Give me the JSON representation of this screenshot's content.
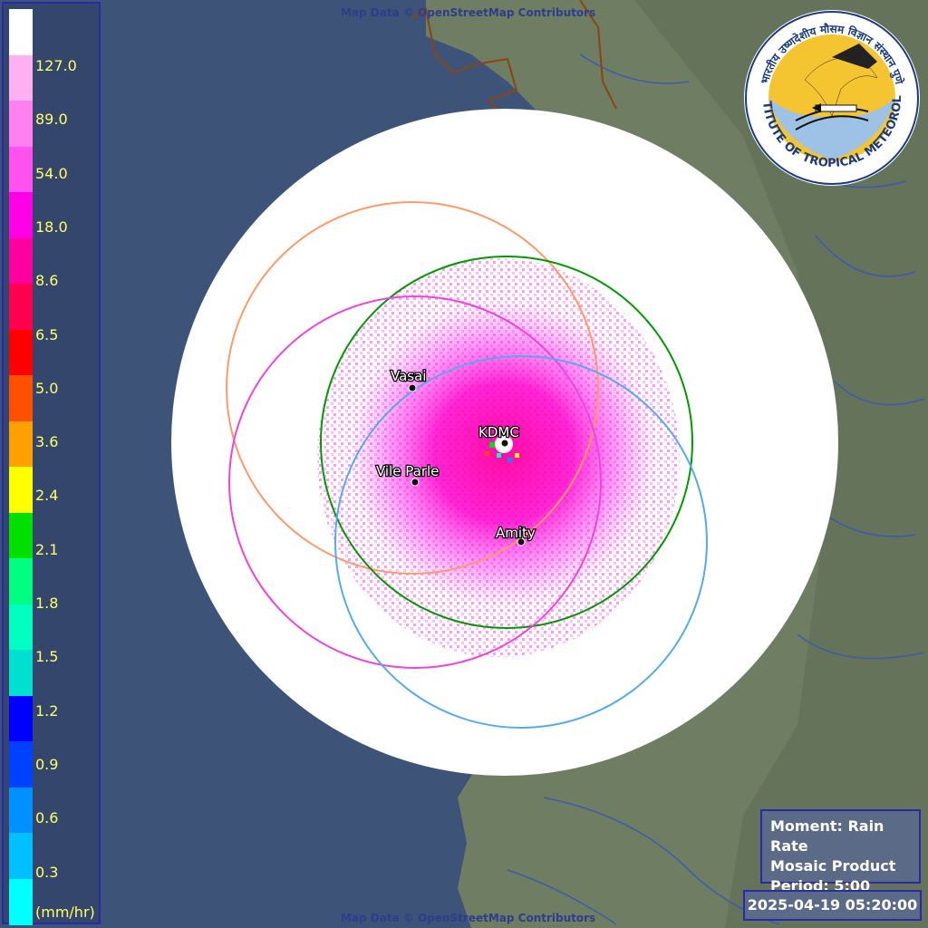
{
  "attribution": "Map Data © OpenStreetMap Contributors",
  "legend": {
    "unit": "(mm/hr)",
    "labels": [
      "127.0",
      "89.0",
      "54.0",
      "18.0",
      "8.6",
      "6.5",
      "5.0",
      "3.6",
      "2.4",
      "2.1",
      "1.8",
      "1.5",
      "1.2",
      "0.9",
      "0.6",
      "0.3"
    ],
    "colors": [
      "#ffffff",
      "#ffb0f0",
      "#ff80f0",
      "#ff50f0",
      "#ff00e6",
      "#ff00a0",
      "#ff0050",
      "#ff0000",
      "#ff5000",
      "#ffa000",
      "#ffff00",
      "#00e000",
      "#00ff80",
      "#00ffc0",
      "#00e0d0",
      "#0000ff",
      "#0040ff",
      "#0090ff",
      "#00c0ff",
      "#00ffff"
    ]
  },
  "info": {
    "moment": "Moment: Rain Rate",
    "product": "Mosaic Product",
    "period": "Period: 5:00"
  },
  "timestamp": "2025-04-19 05:20:00",
  "logo": {
    "name": "INDIAN INSTITUTE OF TROPICAL METEOROLOGY PUNE",
    "hindi": "भारतीय उष्णदेशीय मौसम विज्ञान संस्थान पुणे"
  },
  "stations": [
    {
      "name": "Vasai",
      "color": "#ff9a66"
    },
    {
      "name": "KDMC",
      "color": "#009900"
    },
    {
      "name": "Vile Parle",
      "color": "#ee44dd"
    },
    {
      "name": "Amity",
      "color": "#55aaee"
    }
  ],
  "colors": {
    "sea": "#3d5478",
    "land": "#6f7d62",
    "coverage": "#ffffff",
    "legend_border": "#2a2aa8"
  }
}
